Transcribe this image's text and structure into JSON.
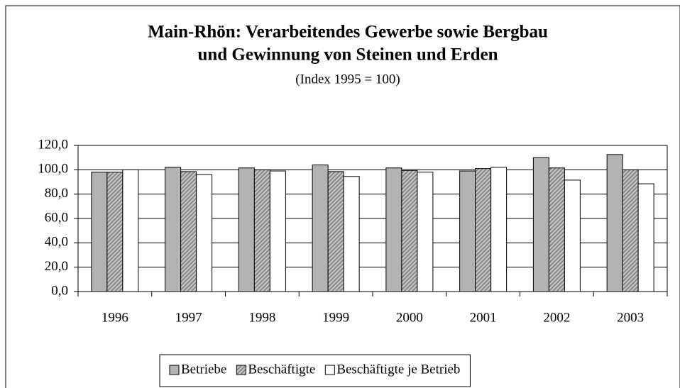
{
  "chart_data": {
    "type": "bar",
    "title": [
      "Main-Rhön: Verarbeitendes Gewerbe sowie Bergbau",
      "und Gewinnung von Steinen und Erden"
    ],
    "subtitle": "(Index 1995 = 100)",
    "categories": [
      "1996",
      "1997",
      "1998",
      "1999",
      "2000",
      "2001",
      "2002",
      "2003"
    ],
    "series": [
      {
        "name": "Betriebe",
        "color": "#b3b3b3",
        "values": [
          98,
          102,
          101.5,
          104,
          101.5,
          99,
          110,
          112.5
        ]
      },
      {
        "name": "Beschäftigte",
        "color": "#c8c8c8",
        "hatch": true,
        "values": [
          98,
          98.5,
          100,
          98.5,
          99.5,
          101,
          101.5,
          100
        ]
      },
      {
        "name": "Beschäftigte je Betrieb",
        "color": "#ffffff",
        "values": [
          100,
          96,
          99,
          94.5,
          98,
          102,
          91.5,
          88.5
        ]
      }
    ],
    "ylim": [
      0,
      120
    ],
    "yticks": [
      {
        "value": 0,
        "label": "0,0"
      },
      {
        "value": 20,
        "label": "20,0"
      },
      {
        "value": 40,
        "label": "40,0"
      },
      {
        "value": 60,
        "label": "60,0"
      },
      {
        "value": 80,
        "label": "80,0"
      },
      {
        "value": 100,
        "label": "100,0"
      },
      {
        "value": 120,
        "label": "120,0"
      }
    ],
    "grid": true,
    "legend": "bottom"
  }
}
